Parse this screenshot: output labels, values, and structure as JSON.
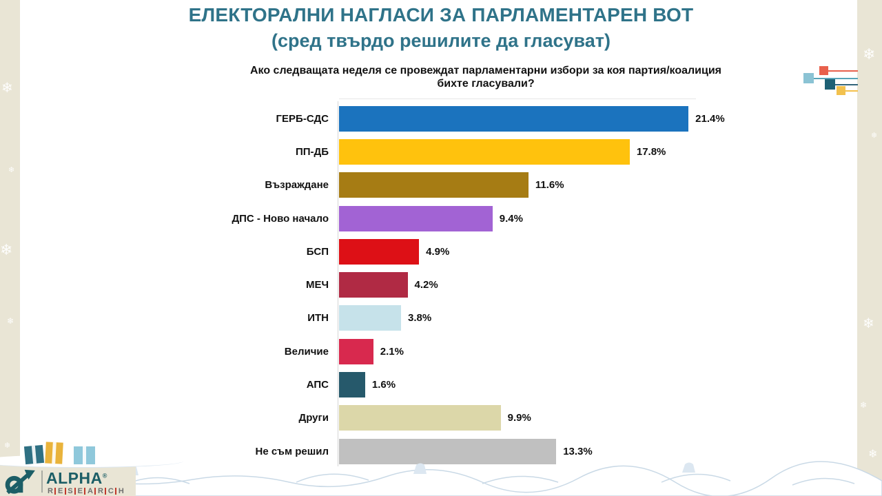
{
  "slide": {
    "title_line1": "ЕЛЕКТОРАЛНИ НАГЛАСИ ЗА ПАРЛАМЕНТАРЕН ВОТ",
    "title_line2": "(сред твърдо решилите да гласуват)",
    "question": "Ако следващата неделя се провеждат парламентарни избори за коя партия/коалиция бихте гласували?",
    "title_color": "#2F7389"
  },
  "chart_data": {
    "type": "bar",
    "orientation": "horizontal",
    "unit": "%",
    "categories": [
      "ГЕРБ-СДС",
      "ПП-ДБ",
      "Възраждане",
      "ДПС - Ново начало",
      "БСП",
      "МЕЧ",
      "ИТН",
      "Величие",
      "АПС",
      "Други",
      "Не съм решил"
    ],
    "values": [
      21.4,
      17.8,
      11.6,
      9.4,
      4.9,
      4.2,
      3.8,
      2.1,
      1.6,
      9.9,
      13.3
    ],
    "value_labels": [
      "21.4%",
      "17.8%",
      "11.6%",
      "9.4%",
      "4.9%",
      "4.2%",
      "3.8%",
      "2.1%",
      "1.6%",
      "9.9%",
      "13.3%"
    ],
    "colors": [
      "#1B73BE",
      "#FFC20D",
      "#A67C14",
      "#A263D4",
      "#DD1016",
      "#B02A44",
      "#C6E2EA",
      "#D8294E",
      "#26596B",
      "#DCD7A9",
      "#C0C0C0"
    ],
    "xlim": [
      0,
      22.5
    ],
    "grid": false,
    "legend": "none",
    "value_label_position": "right-of-bar"
  },
  "logo": {
    "name": "ALPHA RESEARCH",
    "line1": "ALPHA",
    "registered": "®",
    "line2": "RESEARCH",
    "color": "#1C5E66",
    "research_color": "#6F6F6F",
    "research_sep_color": "#C0392B"
  },
  "decor": {
    "snowflake_glyph": "❄",
    "border_color": "#E9E5D5",
    "snow_outline_color": "#C9D9E6",
    "corner_squares": [
      {
        "name": "coral-square",
        "color": "#E8604C",
        "line_color": "#E8604C"
      },
      {
        "name": "light-blue-square",
        "color": "#8BC3D4",
        "line_color": "#57A3B8"
      },
      {
        "name": "dark-teal-square",
        "color": "#1E6175",
        "line_color": "#33657A"
      },
      {
        "name": "yellow-square",
        "color": "#F2C14E",
        "line_color": "#F4C04B"
      }
    ],
    "gift_colors": [
      "#2F7083",
      "#E9B33B",
      "#8FC8DB"
    ]
  }
}
